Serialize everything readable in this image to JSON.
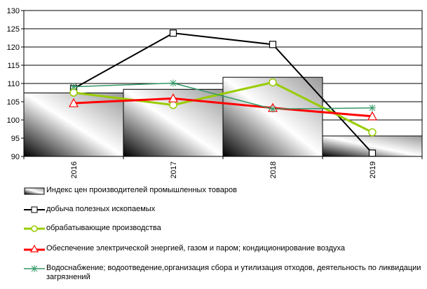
{
  "chart_data": {
    "type": "bar",
    "categories": [
      "2016",
      "2017",
      "2018",
      "2019"
    ],
    "ylim": [
      90,
      130
    ],
    "yticks": [
      90,
      95,
      100,
      105,
      110,
      115,
      120,
      125,
      130
    ],
    "grid": "horizontal",
    "legend_position": "bottom",
    "series": [
      {
        "name": "Индекс цен производителей промышленных товаров",
        "kind": "bar",
        "color": "#000000",
        "values": [
          107.4,
          108.4,
          111.7,
          95.6
        ]
      },
      {
        "name": "добыча полезных ископаемых",
        "kind": "line",
        "marker": "square",
        "color": "#000000",
        "values": [
          108.6,
          123.8,
          120.7,
          90.9
        ]
      },
      {
        "name": "обрабатывающие производства",
        "kind": "line",
        "marker": "circle",
        "color": "#99cc00",
        "values": [
          107.5,
          104.1,
          110.3,
          96.6
        ]
      },
      {
        "name": "Обеспечение электрической энергией, газом и паром; кондиционирование воздуха",
        "kind": "line",
        "marker": "triangle",
        "color": "#ff0000",
        "values": [
          104.6,
          105.9,
          103.3,
          101.0
        ]
      },
      {
        "name": "Водоснабжение; водоотведение,организация сбора и утилизация отходов, деятельность по ликвидации загрязнений",
        "kind": "line",
        "marker": "star",
        "color": "#339966",
        "values": [
          109.1,
          110.1,
          103.0,
          103.3
        ]
      }
    ]
  }
}
